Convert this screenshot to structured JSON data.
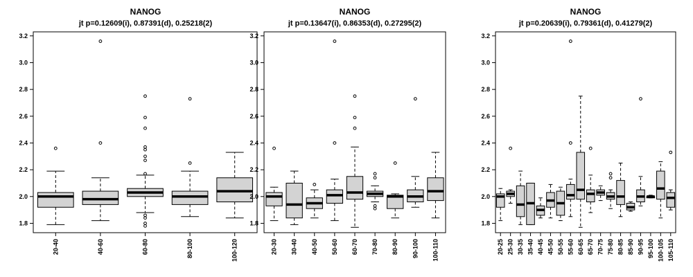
{
  "chart_data": [
    {
      "type": "boxplot",
      "title": "NANOG",
      "subtitle": "jt p=0.12609(i), 0.87391(d), 0.25218(2)",
      "ylim": [
        1.73,
        3.23
      ],
      "yticks": [
        1.8,
        2.0,
        2.2,
        2.4,
        2.6,
        2.8,
        3.0,
        3.2
      ],
      "ytick_labels": [
        "1.8",
        "2.0",
        "2.2",
        "2.4",
        "2.6",
        "2.8",
        "3.0",
        "3.2"
      ],
      "categories": [
        "20-40",
        "40-60",
        "60-80",
        "80-100",
        "100-120"
      ],
      "boxes": [
        {
          "low": 1.79,
          "q1": 1.92,
          "median": 2.0,
          "q3": 2.03,
          "high": 2.19,
          "outliers": [
            2.36
          ]
        },
        {
          "low": 1.82,
          "q1": 1.94,
          "median": 1.98,
          "q3": 2.04,
          "high": 2.14,
          "outliers": [
            2.4,
            3.16
          ]
        },
        {
          "low": 1.88,
          "q1": 2.0,
          "median": 2.03,
          "q3": 2.06,
          "high": 2.16,
          "outliers": [
            1.78,
            1.8,
            1.84,
            1.86,
            2.17,
            2.27,
            2.3,
            2.35,
            2.37,
            2.51,
            2.59,
            2.75
          ]
        },
        {
          "low": 1.85,
          "q1": 1.94,
          "median": 2.0,
          "q3": 2.04,
          "high": 2.19,
          "outliers": [
            2.25,
            2.73
          ]
        },
        {
          "low": 1.84,
          "q1": 1.96,
          "median": 2.04,
          "q3": 2.14,
          "high": 2.33,
          "outliers": []
        }
      ]
    },
    {
      "type": "boxplot",
      "title": "NANOG",
      "subtitle": "jt p=0.13647(i), 0.86353(d), 0.27295(2)",
      "ylim": [
        1.73,
        3.23
      ],
      "yticks": [
        1.8,
        2.0,
        2.2,
        2.4,
        2.6,
        2.8,
        3.0,
        3.2
      ],
      "ytick_labels": [
        "1.8",
        "2.0",
        "2.2",
        "2.4",
        "2.6",
        "2.8",
        "3.0",
        "3.2"
      ],
      "categories": [
        "20-30",
        "30-40",
        "40-50",
        "50-60",
        "60-70",
        "70-80",
        "80-90",
        "90-100",
        "100-110"
      ],
      "boxes": [
        {
          "low": 1.82,
          "q1": 1.93,
          "median": 2.0,
          "q3": 2.03,
          "high": 2.07,
          "outliers": [
            2.36
          ]
        },
        {
          "low": 1.79,
          "q1": 1.84,
          "median": 1.94,
          "q3": 2.1,
          "high": 2.19,
          "outliers": []
        },
        {
          "low": 1.84,
          "q1": 1.91,
          "median": 1.95,
          "q3": 1.99,
          "high": 2.05,
          "outliers": [
            2.09
          ]
        },
        {
          "low": 1.82,
          "q1": 1.95,
          "median": 2.01,
          "q3": 2.05,
          "high": 2.13,
          "outliers": [
            2.4,
            3.16
          ]
        },
        {
          "low": 1.77,
          "q1": 1.98,
          "median": 2.03,
          "q3": 2.15,
          "high": 2.37,
          "outliers": [
            2.51,
            2.59,
            2.75
          ]
        },
        {
          "low": 1.96,
          "q1": 2.0,
          "median": 2.02,
          "q3": 2.04,
          "high": 2.08,
          "outliers": [
            1.91,
            1.93,
            2.14,
            2.17
          ]
        },
        {
          "low": 1.84,
          "q1": 1.91,
          "median": 2.0,
          "q3": 2.01,
          "high": 2.02,
          "outliers": [
            2.25
          ]
        },
        {
          "low": 1.92,
          "q1": 1.96,
          "median": 2.0,
          "q3": 2.05,
          "high": 2.15,
          "outliers": [
            2.73
          ]
        },
        {
          "low": 1.84,
          "q1": 1.97,
          "median": 2.04,
          "q3": 2.14,
          "high": 2.33,
          "outliers": []
        }
      ]
    },
    {
      "type": "boxplot",
      "title": "NANOG",
      "subtitle": "jt p=0.20639(i), 0.79361(d), 0.41279(2)",
      "ylim": [
        1.73,
        3.23
      ],
      "yticks": [
        1.8,
        2.0,
        2.2,
        2.4,
        2.6,
        2.8,
        3.0,
        3.2
      ],
      "ytick_labels": [
        "1.8",
        "2.0",
        "2.2",
        "2.4",
        "2.6",
        "2.8",
        "3.0",
        "3.2"
      ],
      "categories": [
        "20-25",
        "25-30",
        "30-35",
        "35-40",
        "40-45",
        "45-50",
        "50-55",
        "55-60",
        "60-65",
        "65-70",
        "70-75",
        "75-80",
        "80-85",
        "85-90",
        "90-95",
        "95-100",
        "100-105",
        "105-110"
      ],
      "boxes": [
        {
          "low": 1.82,
          "q1": 1.92,
          "median": 2.0,
          "q3": 2.02,
          "high": 2.06,
          "outliers": []
        },
        {
          "low": 1.95,
          "q1": 2.0,
          "median": 2.02,
          "q3": 2.04,
          "high": 2.05,
          "outliers": [
            2.36
          ]
        },
        {
          "low": 1.79,
          "q1": 1.85,
          "median": 1.94,
          "q3": 2.08,
          "high": 2.19,
          "outliers": []
        },
        {
          "low": 1.79,
          "q1": 1.79,
          "median": 1.95,
          "q3": 2.1,
          "high": 2.1,
          "outliers": []
        },
        {
          "low": 1.84,
          "q1": 1.86,
          "median": 1.9,
          "q3": 1.93,
          "high": 1.99,
          "outliers": []
        },
        {
          "low": 1.84,
          "q1": 1.92,
          "median": 1.97,
          "q3": 2.03,
          "high": 2.09,
          "outliers": []
        },
        {
          "low": 1.82,
          "q1": 1.86,
          "median": 1.95,
          "q3": 2.04,
          "high": 2.07,
          "outliers": []
        },
        {
          "low": 1.85,
          "q1": 1.98,
          "median": 2.01,
          "q3": 2.09,
          "high": 2.13,
          "outliers": [
            2.4,
            3.16
          ]
        },
        {
          "low": 1.77,
          "q1": 1.98,
          "median": 2.05,
          "q3": 2.33,
          "high": 2.75,
          "outliers": []
        },
        {
          "low": 1.88,
          "q1": 1.96,
          "median": 2.02,
          "q3": 2.05,
          "high": 2.16,
          "outliers": [
            2.36
          ]
        },
        {
          "low": 1.97,
          "q1": 2.01,
          "median": 2.03,
          "q3": 2.05,
          "high": 2.08,
          "outliers": []
        },
        {
          "low": 1.91,
          "q1": 1.98,
          "median": 2.0,
          "q3": 2.03,
          "high": 2.05,
          "outliers": [
            2.14,
            2.17
          ]
        },
        {
          "low": 1.85,
          "q1": 1.94,
          "median": 2.0,
          "q3": 2.12,
          "high": 2.25,
          "outliers": []
        },
        {
          "low": 1.89,
          "q1": 1.9,
          "median": 1.92,
          "q3": 1.95,
          "high": 1.96,
          "outliers": []
        },
        {
          "low": 1.93,
          "q1": 1.96,
          "median": 2.0,
          "q3": 2.05,
          "high": 2.15,
          "outliers": [
            2.73
          ]
        },
        {
          "low": 1.99,
          "q1": 1.99,
          "median": 2.0,
          "q3": 2.0,
          "high": 2.01,
          "outliers": []
        },
        {
          "low": 1.84,
          "q1": 1.98,
          "median": 2.06,
          "q3": 2.19,
          "high": 2.26,
          "outliers": []
        },
        {
          "low": 1.9,
          "q1": 1.92,
          "median": 1.99,
          "q3": 2.03,
          "high": 2.05,
          "outliers": [
            2.33
          ]
        }
      ]
    }
  ],
  "colors": {
    "box_fill": "#d3d3d3",
    "line": "#000000",
    "background": "#ffffff"
  }
}
